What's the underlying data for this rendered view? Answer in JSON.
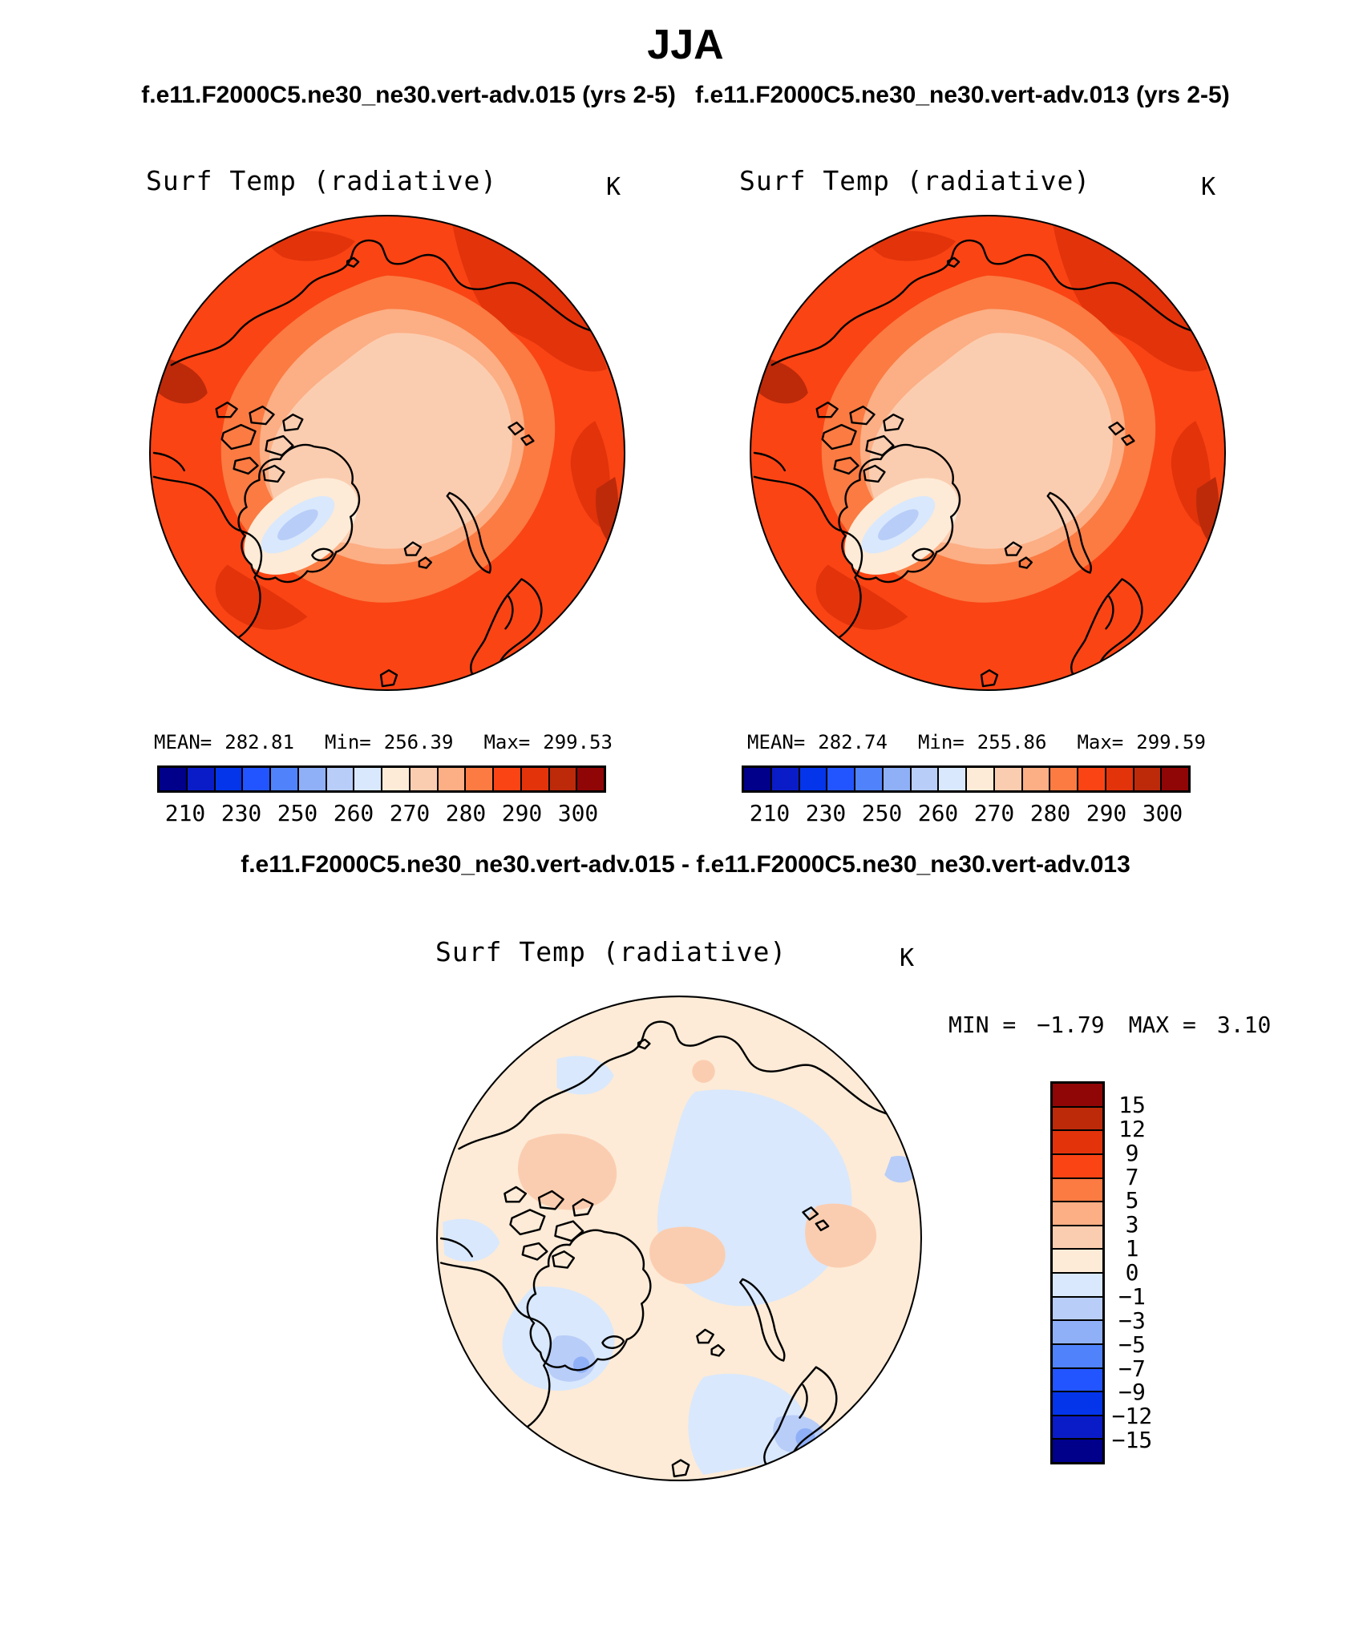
{
  "header": {
    "season_title": "JJA",
    "case1_title": "f.e11.F2000C5.ne30_ne30.vert-adv.015 (yrs 2-5)",
    "case2_title": "f.e11.F2000C5.ne30_ne30.vert-adv.013 (yrs 2-5)",
    "diff_cases_title": "f.e11.F2000C5.ne30_ne30.vert-adv.015 - f.e11.F2000C5.ne30_ne30.vert-adv.013"
  },
  "panels": {
    "case1": {
      "title": "Surf Temp (radiative)",
      "units": "K",
      "mean_label": "MEAN=",
      "mean": "282.81",
      "min_label": "Min=",
      "min": "256.39",
      "max_label": "Max=",
      "max": "299.53"
    },
    "case2": {
      "title": "Surf Temp (radiative)",
      "units": "K",
      "mean_label": "MEAN=",
      "mean": "282.74",
      "min_label": "Min=",
      "min": "255.86",
      "max_label": "Max=",
      "max": "299.59"
    },
    "diff": {
      "title": "Surf Temp (radiative)",
      "units": "K",
      "min_label": "MIN =",
      "min": "−1.79",
      "max_label": "MAX =",
      "max": "3.10"
    }
  },
  "colorbars": {
    "palette_blue_to_red": [
      "#00008B",
      "#0A1CC8",
      "#0435EA",
      "#2255FF",
      "#5083FB",
      "#8FB0F7",
      "#B8CDF8",
      "#D9E8FC",
      "#FDEBD7",
      "#FBCDB0",
      "#FCAE84",
      "#FB7B42",
      "#FA4414",
      "#E2330B",
      "#BC2A0A",
      "#900606"
    ],
    "abs_ticks": [
      "210",
      "230",
      "250",
      "260",
      "270",
      "280",
      "290",
      "300"
    ],
    "abs_levels": [
      210,
      220,
      230,
      240,
      250,
      255,
      260,
      265,
      270,
      275,
      280,
      285,
      290,
      295,
      300
    ],
    "diff_ticks_top_to_bottom": [
      "15",
      "12",
      "9",
      "7",
      "5",
      "3",
      "1",
      "0",
      "−1",
      "−3",
      "−5",
      "−7",
      "−9",
      "−12",
      "−15"
    ],
    "diff_levels": [
      -15,
      -12,
      -9,
      -7,
      -5,
      -3,
      -1,
      0,
      1,
      3,
      5,
      7,
      9,
      12,
      15
    ]
  },
  "chart_data": [
    {
      "type": "heatmap",
      "panel": "case1",
      "season": "JJA",
      "case": "f.e11.F2000C5.ne30_ne30.vert-adv.015 (yrs 2-5)",
      "title": "Surf Temp (radiative)",
      "units": "K",
      "projection": "north-polar-stereographic",
      "stats": {
        "mean": 282.81,
        "min": 256.39,
        "max": 299.53
      },
      "contour_levels": [
        210,
        220,
        230,
        240,
        250,
        255,
        260,
        265,
        270,
        275,
        280,
        285,
        290,
        295,
        300
      ],
      "colorbar_tick_labels": [
        "210",
        "230",
        "250",
        "260",
        "270",
        "280",
        "290",
        "300"
      ],
      "legend_position": "below-horizontal"
    },
    {
      "type": "heatmap",
      "panel": "case2",
      "season": "JJA",
      "case": "f.e11.F2000C5.ne30_ne30.vert-adv.013 (yrs 2-5)",
      "title": "Surf Temp (radiative)",
      "units": "K",
      "projection": "north-polar-stereographic",
      "stats": {
        "mean": 282.74,
        "min": 255.86,
        "max": 299.59
      },
      "contour_levels": [
        210,
        220,
        230,
        240,
        250,
        255,
        260,
        265,
        270,
        275,
        280,
        285,
        290,
        295,
        300
      ],
      "colorbar_tick_labels": [
        "210",
        "230",
        "250",
        "260",
        "270",
        "280",
        "290",
        "300"
      ],
      "legend_position": "below-horizontal"
    },
    {
      "type": "heatmap",
      "panel": "difference",
      "season": "JJA",
      "case": "f.e11.F2000C5.ne30_ne30.vert-adv.015 - f.e11.F2000C5.ne30_ne30.vert-adv.013",
      "title": "Surf Temp (radiative)",
      "units": "K",
      "projection": "north-polar-stereographic",
      "stats": {
        "min": -1.79,
        "max": 3.1
      },
      "contour_levels": [
        -15,
        -12,
        -9,
        -7,
        -5,
        -3,
        -1,
        0,
        1,
        3,
        5,
        7,
        9,
        12,
        15
      ],
      "colorbar_tick_labels": [
        "15",
        "12",
        "9",
        "7",
        "5",
        "3",
        "1",
        "0",
        "-1",
        "-3",
        "-5",
        "-7",
        "-9",
        "-12",
        "-15"
      ],
      "legend_position": "right-vertical"
    }
  ]
}
